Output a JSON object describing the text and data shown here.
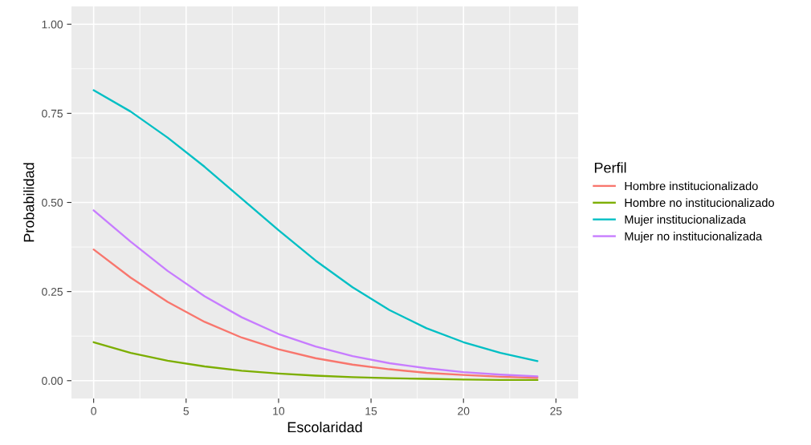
{
  "chart_data": {
    "type": "line",
    "xlabel": "Escolaridad",
    "ylabel": "Probabilidad",
    "legend_title": "Perfil",
    "x": [
      0,
      2,
      4,
      6,
      8,
      10,
      12,
      14,
      16,
      18,
      20,
      22,
      24
    ],
    "series": [
      {
        "name": "Hombre institucionalizado",
        "color": "#f8766d",
        "values": [
          0.368,
          0.289,
          0.221,
          0.165,
          0.121,
          0.088,
          0.063,
          0.045,
          0.032,
          0.022,
          0.016,
          0.011,
          0.008
        ]
      },
      {
        "name": "Hombre no institucionalizado",
        "color": "#7cae00",
        "values": [
          0.108,
          0.078,
          0.056,
          0.04,
          0.028,
          0.02,
          0.014,
          0.01,
          0.007,
          0.005,
          0.003,
          0.002,
          0.002
        ]
      },
      {
        "name": "Mujer institucionalizada",
        "color": "#00bfc4",
        "values": [
          0.815,
          0.755,
          0.682,
          0.6,
          0.511,
          0.422,
          0.337,
          0.262,
          0.198,
          0.147,
          0.108,
          0.078,
          0.055
        ]
      },
      {
        "name": "Mujer no institucionalizada",
        "color": "#c77cff",
        "values": [
          0.478,
          0.39,
          0.308,
          0.237,
          0.178,
          0.131,
          0.096,
          0.069,
          0.049,
          0.035,
          0.024,
          0.017,
          0.012
        ]
      }
    ],
    "xlim": [
      -1.2,
      26.2
    ],
    "xticks": [
      0,
      5,
      10,
      15,
      20,
      25
    ],
    "ylim": [
      -0.05,
      1.05
    ],
    "yticks": [
      {
        "value": 0,
        "label": "0.00"
      },
      {
        "value": 0.25,
        "label": "0.25"
      },
      {
        "value": 0.5,
        "label": "0.50"
      },
      {
        "value": 0.75,
        "label": "0.75"
      },
      {
        "value": 1,
        "label": "1.00"
      }
    ],
    "grid": true,
    "legend": "right",
    "marker": "none",
    "line_style": "solid"
  }
}
